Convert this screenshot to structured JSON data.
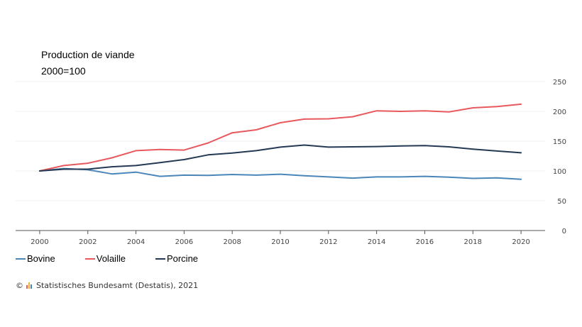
{
  "chart_data": {
    "type": "line",
    "title": "Production de viande",
    "subtitle": "2000=100",
    "x": [
      2000,
      2001,
      2002,
      2003,
      2004,
      2005,
      2006,
      2007,
      2008,
      2009,
      2010,
      2011,
      2012,
      2013,
      2014,
      2015,
      2016,
      2017,
      2018,
      2019,
      2020
    ],
    "x_ticks": [
      "2000",
      "2002",
      "2004",
      "2006",
      "2008",
      "2010",
      "2012",
      "2014",
      "2016",
      "2018",
      "2020"
    ],
    "y_ticks": [
      "0",
      "50",
      "100",
      "150",
      "200",
      "250"
    ],
    "ylim": [
      0,
      250
    ],
    "xlim": [
      1999,
      2021
    ],
    "grid": true,
    "legend_position": "bottom-left",
    "series": [
      {
        "name": "Bovine",
        "color": "#4a86b8",
        "values": [
          100,
          104,
          102,
          95,
          98,
          91,
          93,
          92.5,
          94,
          93,
          94.5,
          92,
          90,
          88,
          90,
          90,
          91,
          89.5,
          87.5,
          88.5,
          86
        ]
      },
      {
        "name": "Volaille",
        "color": "#e8595e",
        "values": [
          100,
          109,
          113,
          122,
          134,
          136,
          135,
          147,
          164,
          169,
          181,
          187,
          187.5,
          191,
          201,
          200,
          201,
          199,
          206,
          208,
          212
        ]
      },
      {
        "name": "Porcine",
        "color": "#243a54",
        "values": [
          100,
          103,
          103,
          107,
          109,
          114,
          119,
          127,
          130,
          134,
          140,
          143.5,
          140,
          140.5,
          141,
          142,
          142.5,
          140.5,
          136.5,
          133.5,
          130.5
        ]
      }
    ]
  },
  "source": {
    "copyright": "©",
    "text": "Statistisches Bundesamt (Destatis), 2021",
    "icon": "destatis-logo-icon",
    "icon_colors": [
      "#e8595e",
      "#f2b134",
      "#4a86b8"
    ]
  }
}
